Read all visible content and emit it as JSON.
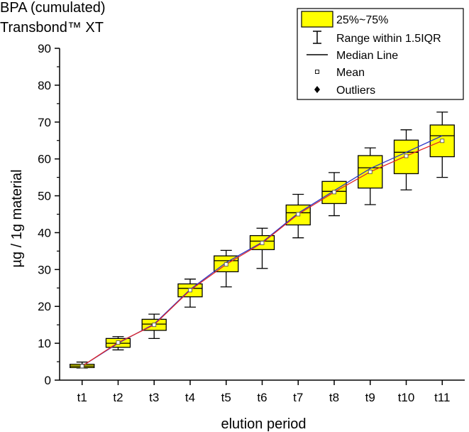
{
  "title": {
    "line1": "BPA (cumulated)",
    "line2": "Transbond™ XT"
  },
  "chart_data": {
    "type": "box",
    "title": "BPA (cumulated) Transbond™ XT",
    "xlabel": "elution period",
    "ylabel": "µg / 1g material",
    "ylim": [
      0,
      90
    ],
    "yticks": [
      0,
      10,
      20,
      30,
      40,
      50,
      60,
      70,
      80,
      90
    ],
    "categories": [
      "t1",
      "t2",
      "t3",
      "t4",
      "t5",
      "t6",
      "t7",
      "t8",
      "t9",
      "t10",
      "t11"
    ],
    "boxes": [
      {
        "category": "t1",
        "whisker_low": 3.3,
        "q1": 3.4,
        "median": 3.8,
        "q3": 4.3,
        "whisker_high": 4.9,
        "mean": 3.8
      },
      {
        "category": "t2",
        "whisker_low": 8.2,
        "q1": 8.9,
        "median": 10.0,
        "q3": 11.3,
        "whisker_high": 11.8,
        "mean": 10.2
      },
      {
        "category": "t3",
        "whisker_low": 11.3,
        "q1": 13.5,
        "median": 15.2,
        "q3": 16.5,
        "whisker_high": 17.9,
        "mean": 15.0
      },
      {
        "category": "t4",
        "whisker_low": 19.8,
        "q1": 22.6,
        "median": 24.9,
        "q3": 26.1,
        "whisker_high": 27.4,
        "mean": 24.4
      },
      {
        "category": "t5",
        "whisker_low": 25.3,
        "q1": 29.4,
        "median": 32.4,
        "q3": 33.7,
        "whisker_high": 35.2,
        "mean": 31.4
      },
      {
        "category": "t6",
        "whisker_low": 30.3,
        "q1": 35.4,
        "median": 37.7,
        "q3": 39.2,
        "whisker_high": 41.2,
        "mean": 37.2
      },
      {
        "category": "t7",
        "whisker_low": 38.6,
        "q1": 42.1,
        "median": 45.4,
        "q3": 47.5,
        "whisker_high": 50.4,
        "mean": 45.0
      },
      {
        "category": "t8",
        "whisker_low": 44.6,
        "q1": 47.9,
        "median": 51.2,
        "q3": 53.9,
        "whisker_high": 56.3,
        "mean": 51.0
      },
      {
        "category": "t9",
        "whisker_low": 47.6,
        "q1": 52.1,
        "median": 57.6,
        "q3": 60.9,
        "whisker_high": 63.0,
        "mean": 56.5
      },
      {
        "category": "t10",
        "whisker_low": 51.6,
        "q1": 56.0,
        "median": 61.8,
        "q3": 65.1,
        "whisker_high": 67.9,
        "mean": 60.8
      },
      {
        "category": "t11",
        "whisker_low": 55.0,
        "q1": 60.6,
        "median": 66.3,
        "q3": 69.2,
        "whisker_high": 72.7,
        "mean": 64.9
      }
    ],
    "lines": [
      {
        "name": "blue trend",
        "color": "#2a36c8",
        "values": [
          3.8,
          10.0,
          15.2,
          24.6,
          31.9,
          37.4,
          45.3,
          51.4,
          57.4,
          61.8,
          66.3
        ]
      },
      {
        "name": "red trend",
        "color": "#e0262a",
        "values": [
          3.8,
          10.2,
          15.0,
          24.4,
          31.4,
          37.2,
          45.0,
          51.0,
          56.5,
          60.8,
          64.9
        ]
      }
    ],
    "legend": {
      "position": "top-right",
      "entries": [
        "25%~75%",
        "Range within 1.5IQR",
        "Median Line",
        "Mean",
        "Outliers"
      ]
    },
    "colors": {
      "box_fill": "#ffff00",
      "box_stroke": "#000000"
    }
  }
}
